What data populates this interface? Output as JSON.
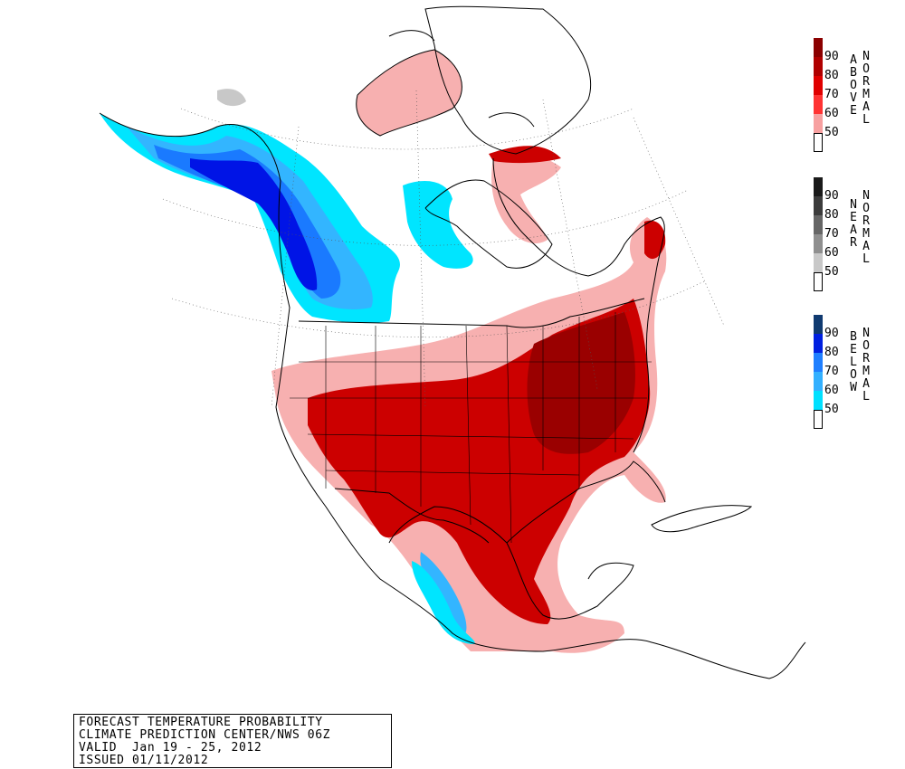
{
  "info_box": {
    "line1": "FORECAST TEMPERATURE PROBABILITY",
    "line2": "CLIMATE PREDICTION CENTER/NWS 06Z",
    "line3": "VALID  Jan 19 - 25, 2012",
    "line4": "ISSUED 01/11/2012"
  },
  "legends": {
    "above": {
      "word1": "ABOVE",
      "word2": "NORMAL",
      "ticks": [
        "90",
        "80",
        "70",
        "60",
        "50"
      ],
      "colors": [
        "#8b0000",
        "#b00000",
        "#e00000",
        "#ff3333",
        "#f7a0a0",
        "#ffffff"
      ]
    },
    "near": {
      "word1": "NEAR",
      "word2": "NORMAL",
      "ticks": [
        "90",
        "80",
        "70",
        "60",
        "50"
      ],
      "colors": [
        "#1a1a1a",
        "#3c3c3c",
        "#666666",
        "#8f8f8f",
        "#c8c8c8",
        "#ffffff"
      ]
    },
    "below": {
      "word1": "BELOW",
      "word2": "NORMAL",
      "ticks": [
        "90",
        "80",
        "70",
        "60",
        "50"
      ],
      "colors": [
        "#103a70",
        "#0020e0",
        "#1f7fff",
        "#33b0ff",
        "#00e0ff",
        "#ffffff"
      ]
    }
  },
  "map_colors": {
    "above_light": "#f7b0b0",
    "above_med": "#ff4040",
    "above_dark": "#cc0000",
    "above_darkest": "#9a0000",
    "below_cyan": "#00e5ff",
    "below_light": "#33b5ff",
    "below_med": "#1a7aff",
    "below_dark": "#0014e6",
    "near_gray": "#c8c8c8"
  }
}
